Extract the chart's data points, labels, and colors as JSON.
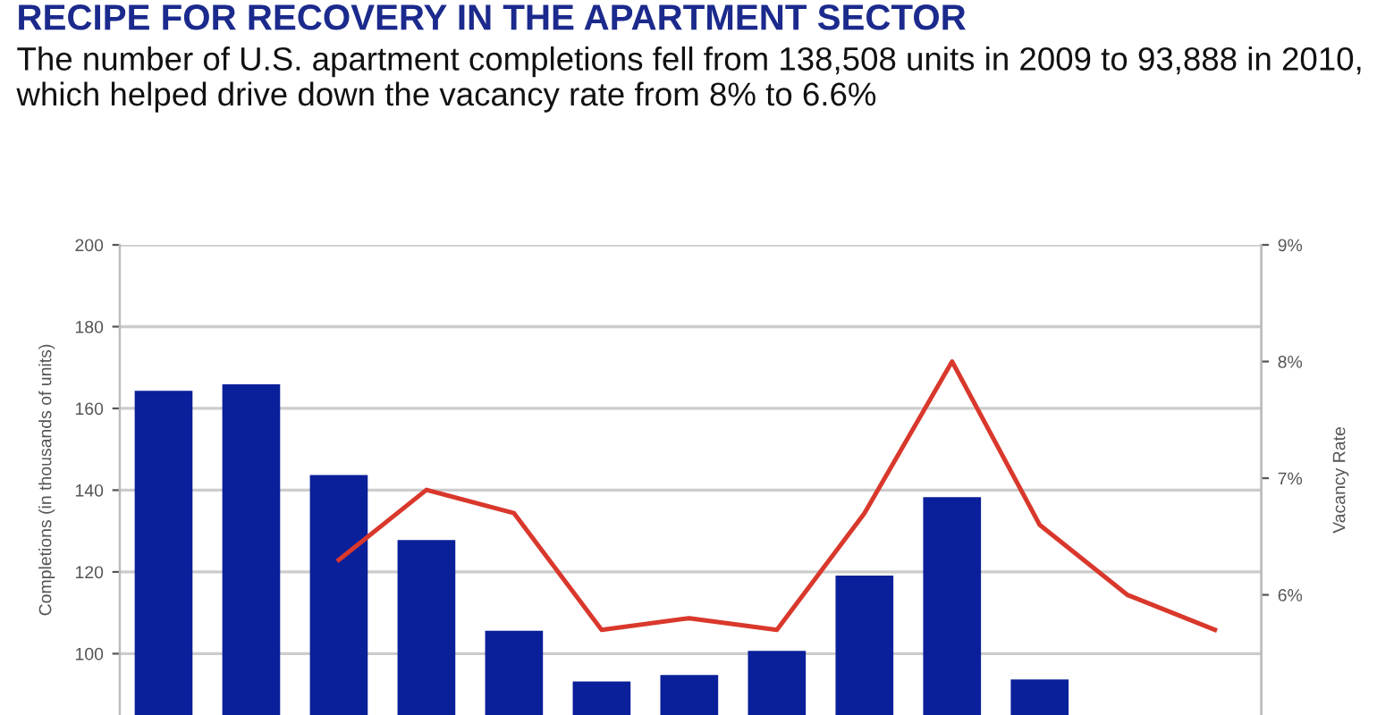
{
  "chart_data": {
    "type": "bar",
    "title": "RECIPE FOR RECOVERY IN THE APARTMENT SECTOR",
    "subtitle": "The number of U.S. apartment completions fell from 138,508 units in 2009 to 93,888 in 2010, which helped drive down the vacancy rate from 8% to 6.6%",
    "ylabel": "Completions (in thousands of units)",
    "y2label": "Vacancy Rate",
    "categories": [
      null,
      null,
      null,
      null,
      null,
      null,
      null,
      null,
      null,
      null,
      null,
      null,
      null
    ],
    "series": [
      {
        "color": "#0a1f9a",
        "values": [
          164.3,
          165.9,
          143.7,
          127.8,
          105.6,
          93.2,
          94.8,
          100.7,
          119.1,
          138.3,
          93.7,
          null,
          null
        ]
      },
      {
        "type": "line",
        "axis": "y2",
        "color": "#d9382c",
        "values": [
          null,
          null,
          6.3,
          6.9,
          6.7,
          5.7,
          5.8,
          5.7,
          6.7,
          8.0,
          6.6,
          6.0,
          5.7
        ]
      }
    ],
    "ylim": [
      85,
      200
    ],
    "yticks": [
      100,
      120,
      140,
      160,
      180,
      200
    ],
    "y2lim": [
      4.97,
      9
    ],
    "y2ticks": [
      {
        "value": 6,
        "label": "6%"
      },
      {
        "value": 7,
        "label": "7%"
      },
      {
        "value": 8,
        "label": "8%"
      },
      {
        "value": 9,
        "label": "9%"
      }
    ],
    "grid": "y",
    "marker": "none",
    "line_style": "solid",
    "tick_labels": "y"
  }
}
